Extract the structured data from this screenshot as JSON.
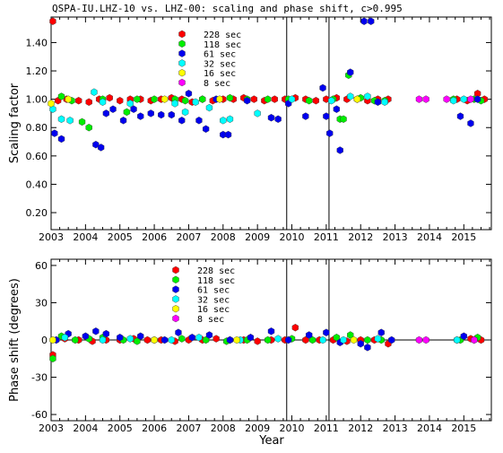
{
  "title": "QSPA-IU.LHZ-10 vs. LHZ-00: scaling and phase shift, c>0.995",
  "xlabel": "Year",
  "colors": {
    "228": "#ff0000",
    "118": "#00ee00",
    "61": "#0000ee",
    "32": "#00ffff",
    "16": "#ffff00",
    "8": "#ff00ff"
  },
  "chart_data": [
    {
      "type": "scatter",
      "ylabel": "Scaling factor",
      "xlim": [
        2003,
        2015.8
      ],
      "ylim": [
        0.08,
        1.58
      ],
      "yticks": [
        "0.20",
        "0.40",
        "0.60",
        "0.80",
        "1.00",
        "1.20",
        "1.40"
      ],
      "xticks": [
        "2003",
        "2004",
        "2005",
        "2006",
        "2007",
        "2008",
        "2009",
        "2010",
        "2011",
        "2012",
        "2013",
        "2014",
        "2015"
      ],
      "vlines": [
        2009.85,
        2011.08
      ],
      "legend": [
        "228 sec",
        "118 sec",
        "61 sec",
        "32 sec",
        "16 sec",
        "8 sec"
      ],
      "series": [
        {
          "name": "228 sec",
          "key": "228",
          "points": [
            [
              2003.05,
              1.55
            ],
            [
              2003.2,
              0.99
            ],
            [
              2003.45,
              1.0
            ],
            [
              2003.8,
              0.99
            ],
            [
              2004.1,
              0.98
            ],
            [
              2004.4,
              1.0
            ],
            [
              2004.7,
              1.01
            ],
            [
              2005.0,
              0.99
            ],
            [
              2005.3,
              1.0
            ],
            [
              2005.6,
              1.0
            ],
            [
              2005.9,
              0.99
            ],
            [
              2006.2,
              1.0
            ],
            [
              2006.5,
              1.01
            ],
            [
              2006.8,
              1.0
            ],
            [
              2007.1,
              0.98
            ],
            [
              2007.4,
              1.0
            ],
            [
              2007.7,
              0.99
            ],
            [
              2008.0,
              1.0
            ],
            [
              2008.3,
              1.0
            ],
            [
              2008.6,
              1.01
            ],
            [
              2008.9,
              1.0
            ],
            [
              2009.2,
              0.99
            ],
            [
              2009.5,
              1.0
            ],
            [
              2009.8,
              1.0
            ],
            [
              2010.1,
              1.01
            ],
            [
              2010.4,
              1.0
            ],
            [
              2010.7,
              0.99
            ],
            [
              2011.0,
              1.0
            ],
            [
              2011.3,
              1.01
            ],
            [
              2011.6,
              1.0
            ],
            [
              2011.9,
              1.0
            ],
            [
              2012.2,
              0.99
            ],
            [
              2012.5,
              1.0
            ],
            [
              2012.8,
              1.0
            ],
            [
              2014.8,
              1.0
            ],
            [
              2015.1,
              0.99
            ],
            [
              2015.4,
              1.04
            ],
            [
              2015.6,
              1.0
            ]
          ]
        },
        {
          "name": "118 sec",
          "key": "118",
          "points": [
            [
              2003.3,
              1.02
            ],
            [
              2003.6,
              0.99
            ],
            [
              2003.9,
              0.84
            ],
            [
              2004.1,
              0.8
            ],
            [
              2004.5,
              1.0
            ],
            [
              2005.2,
              0.91
            ],
            [
              2005.5,
              1.0
            ],
            [
              2006.0,
              1.0
            ],
            [
              2006.6,
              1.0
            ],
            [
              2006.9,
              0.99
            ],
            [
              2007.4,
              1.0
            ],
            [
              2008.2,
              1.01
            ],
            [
              2008.7,
              1.0
            ],
            [
              2009.3,
              1.0
            ],
            [
              2009.9,
              1.0
            ],
            [
              2010.5,
              0.99
            ],
            [
              2011.2,
              1.0
            ],
            [
              2011.4,
              0.86
            ],
            [
              2011.5,
              0.86
            ],
            [
              2011.65,
              1.17
            ],
            [
              2012.0,
              1.01
            ],
            [
              2012.4,
              0.99
            ],
            [
              2012.7,
              0.99
            ],
            [
              2014.7,
              1.0
            ],
            [
              2015.3,
              1.0
            ],
            [
              2015.5,
              0.99
            ]
          ]
        },
        {
          "name": "61 sec",
          "key": "61",
          "points": [
            [
              2003.1,
              0.76
            ],
            [
              2003.3,
              0.72
            ],
            [
              2004.3,
              0.68
            ],
            [
              2004.45,
              0.66
            ],
            [
              2004.6,
              0.9
            ],
            [
              2004.8,
              0.93
            ],
            [
              2005.1,
              0.85
            ],
            [
              2005.4,
              0.93
            ],
            [
              2005.6,
              0.88
            ],
            [
              2005.9,
              0.9
            ],
            [
              2006.2,
              0.89
            ],
            [
              2006.5,
              0.89
            ],
            [
              2006.8,
              0.85
            ],
            [
              2007.0,
              1.04
            ],
            [
              2007.3,
              0.85
            ],
            [
              2007.5,
              0.79
            ],
            [
              2007.8,
              1.0
            ],
            [
              2008.0,
              0.75
            ],
            [
              2008.15,
              0.75
            ],
            [
              2008.7,
              0.99
            ],
            [
              2009.4,
              0.87
            ],
            [
              2009.6,
              0.86
            ],
            [
              2009.9,
              0.97
            ],
            [
              2010.4,
              0.88
            ],
            [
              2010.9,
              1.08
            ],
            [
              2011.0,
              0.88
            ],
            [
              2011.1,
              0.76
            ],
            [
              2011.3,
              0.93
            ],
            [
              2011.4,
              0.64
            ],
            [
              2011.7,
              1.19
            ],
            [
              2012.1,
              1.55
            ],
            [
              2012.3,
              1.55
            ],
            [
              2012.5,
              0.98
            ],
            [
              2014.9,
              0.88
            ],
            [
              2015.2,
              0.83
            ],
            [
              2015.4,
              1.0
            ]
          ]
        },
        {
          "name": "32 sec",
          "key": "32",
          "points": [
            [
              2003.05,
              0.93
            ],
            [
              2003.3,
              0.86
            ],
            [
              2003.55,
              0.85
            ],
            [
              2004.25,
              1.05
            ],
            [
              2004.5,
              0.98
            ],
            [
              2005.3,
              0.97
            ],
            [
              2006.6,
              0.97
            ],
            [
              2006.9,
              0.91
            ],
            [
              2007.2,
              0.98
            ],
            [
              2007.6,
              0.94
            ],
            [
              2008.0,
              0.85
            ],
            [
              2008.2,
              0.86
            ],
            [
              2009.0,
              0.9
            ],
            [
              2010.0,
              1.0
            ],
            [
              2011.15,
              0.99
            ],
            [
              2011.7,
              1.02
            ],
            [
              2012.2,
              1.02
            ],
            [
              2012.7,
              0.98
            ],
            [
              2014.7,
              0.99
            ],
            [
              2015.0,
              1.0
            ]
          ]
        },
        {
          "name": "16 sec",
          "key": "16",
          "points": [
            [
              2003.0,
              0.97
            ],
            [
              2003.5,
              1.0
            ],
            [
              2006.3,
              1.0
            ],
            [
              2007.9,
              1.0
            ],
            [
              2011.9,
              1.0
            ]
          ]
        },
        {
          "name": "8 sec",
          "key": "8",
          "points": [
            [
              2013.7,
              1.0
            ],
            [
              2013.9,
              1.0
            ],
            [
              2014.5,
              1.0
            ],
            [
              2015.2,
              1.0
            ]
          ]
        }
      ]
    },
    {
      "type": "scatter",
      "ylabel": "Phase shift (degrees)",
      "xlim": [
        2003,
        2015.8
      ],
      "ylim": [
        -65,
        65
      ],
      "yticks": [
        "-60",
        "-30",
        "0",
        "30",
        "60"
      ],
      "xticks": [
        "2003",
        "2004",
        "2005",
        "2006",
        "2007",
        "2008",
        "2009",
        "2010",
        "2011",
        "2012",
        "2013",
        "2014",
        "2015"
      ],
      "vlines": [
        2009.85,
        2011.08
      ],
      "legend": [
        "228 sec",
        "118 sec",
        "61 sec",
        "32 sec",
        "16 sec",
        "8 sec"
      ],
      "series": [
        {
          "name": "228 sec",
          "key": "228",
          "points": [
            [
              2003.05,
              -12
            ],
            [
              2003.4,
              1
            ],
            [
              2003.8,
              0
            ],
            [
              2004.2,
              -1
            ],
            [
              2004.6,
              0
            ],
            [
              2005.0,
              0
            ],
            [
              2005.4,
              1
            ],
            [
              2005.8,
              0
            ],
            [
              2006.2,
              0
            ],
            [
              2006.6,
              -1
            ],
            [
              2007.0,
              0
            ],
            [
              2007.4,
              0
            ],
            [
              2007.8,
              1
            ],
            [
              2008.2,
              0
            ],
            [
              2008.6,
              0
            ],
            [
              2009.0,
              -1
            ],
            [
              2009.4,
              0
            ],
            [
              2009.8,
              0
            ],
            [
              2010.1,
              10
            ],
            [
              2010.4,
              0
            ],
            [
              2010.8,
              0
            ],
            [
              2011.2,
              0
            ],
            [
              2011.6,
              -1
            ],
            [
              2012.0,
              0
            ],
            [
              2012.4,
              0
            ],
            [
              2012.8,
              -3
            ],
            [
              2014.8,
              0
            ],
            [
              2015.2,
              1
            ],
            [
              2015.5,
              0
            ]
          ]
        },
        {
          "name": "118 sec",
          "key": "118",
          "points": [
            [
              2003.05,
              -15
            ],
            [
              2003.3,
              3
            ],
            [
              2003.7,
              0
            ],
            [
              2004.1,
              1
            ],
            [
              2004.5,
              2
            ],
            [
              2005.1,
              0
            ],
            [
              2005.5,
              -1
            ],
            [
              2006.0,
              0
            ],
            [
              2006.8,
              1
            ],
            [
              2007.5,
              0
            ],
            [
              2008.1,
              -1
            ],
            [
              2008.7,
              0
            ],
            [
              2009.3,
              0
            ],
            [
              2010.0,
              1
            ],
            [
              2010.6,
              0
            ],
            [
              2011.3,
              2
            ],
            [
              2011.7,
              4
            ],
            [
              2012.2,
              0
            ],
            [
              2012.6,
              0
            ],
            [
              2014.9,
              0
            ],
            [
              2015.4,
              2
            ]
          ]
        },
        {
          "name": "61 sec",
          "key": "61",
          "points": [
            [
              2003.15,
              0
            ],
            [
              2003.5,
              5
            ],
            [
              2004.0,
              3
            ],
            [
              2004.3,
              7
            ],
            [
              2004.6,
              5
            ],
            [
              2005.0,
              2
            ],
            [
              2005.6,
              3
            ],
            [
              2006.3,
              0
            ],
            [
              2006.7,
              6
            ],
            [
              2007.1,
              2
            ],
            [
              2007.6,
              4
            ],
            [
              2008.2,
              0
            ],
            [
              2008.8,
              2
            ],
            [
              2009.4,
              7
            ],
            [
              2009.9,
              0
            ],
            [
              2010.5,
              4
            ],
            [
              2011.0,
              6
            ],
            [
              2011.4,
              -2
            ],
            [
              2012.0,
              -3
            ],
            [
              2012.2,
              -6
            ],
            [
              2012.6,
              6
            ],
            [
              2012.9,
              0
            ],
            [
              2015.0,
              3
            ],
            [
              2015.3,
              0
            ]
          ]
        },
        {
          "name": "32 sec",
          "key": "32",
          "points": [
            [
              2003.4,
              2
            ],
            [
              2004.5,
              0
            ],
            [
              2005.3,
              1
            ],
            [
              2006.5,
              0
            ],
            [
              2007.3,
              2
            ],
            [
              2008.5,
              0
            ],
            [
              2009.6,
              1
            ],
            [
              2010.9,
              0
            ],
            [
              2011.5,
              0
            ],
            [
              2012.5,
              1
            ],
            [
              2014.8,
              0
            ]
          ]
        },
        {
          "name": "16 sec",
          "key": "16",
          "points": [
            [
              2003.05,
              0
            ],
            [
              2006.0,
              0
            ],
            [
              2008.4,
              0
            ],
            [
              2011.8,
              0
            ]
          ]
        },
        {
          "name": "8 sec",
          "key": "8",
          "points": [
            [
              2013.7,
              0
            ],
            [
              2013.9,
              0
            ],
            [
              2015.3,
              0
            ]
          ]
        }
      ]
    }
  ]
}
